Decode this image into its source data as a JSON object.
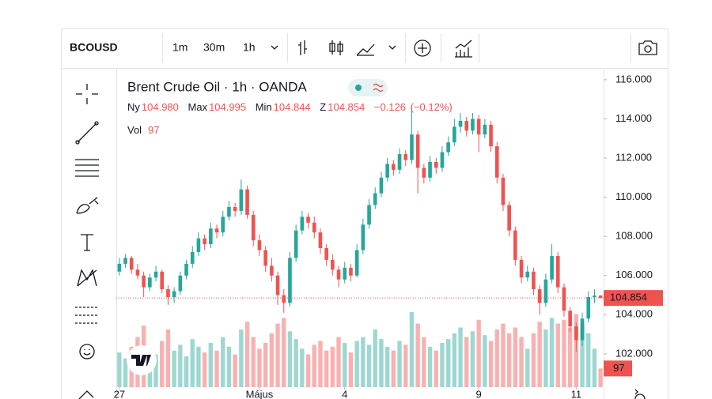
{
  "toolbar": {
    "symbol": "BCOUSD",
    "intervals": [
      "1m",
      "30m",
      "1h"
    ],
    "active_interval": 2
  },
  "chart_data": {
    "type": "candlestick",
    "title": "Brent Crude Oil · 1h · OANDA",
    "legend": {
      "open_label": "Ny",
      "open": "104.980",
      "high_label": "Max",
      "high": "104.995",
      "low_label": "Min",
      "low": "104.844",
      "close_label": "Z",
      "close": "104.854",
      "change": "−0.126",
      "change_pct": "(−0.12%)",
      "volume_label": "Vol"
    },
    "up_color": "#26a69a",
    "down_color": "#ef5350",
    "open": [
      106.2,
      106.6,
      106.9,
      106.3,
      106.0,
      105.4,
      105.9,
      106.2,
      105.3,
      104.9,
      105.2,
      106.0,
      106.6,
      107.2,
      107.9,
      107.6,
      108.4,
      108.2,
      109.0,
      109.5,
      109.3,
      110.4,
      109.1,
      107.8,
      107.3,
      106.5,
      106.0,
      105.0,
      104.6,
      106.9,
      108.3,
      109.0,
      108.7,
      108.2,
      107.4,
      106.8,
      106.3,
      105.8,
      106.4,
      106.0,
      107.3,
      108.6,
      109.6,
      110.2,
      111.0,
      111.7,
      111.4,
      112.2,
      111.9,
      113.2,
      111.5,
      111.0,
      111.8,
      111.5,
      112.3,
      112.8,
      113.6,
      113.9,
      113.4,
      114.0,
      113.2,
      113.7,
      112.6,
      111.0,
      109.6,
      108.3,
      106.8,
      105.9,
      106.2,
      105.3,
      104.6,
      105.8,
      107.0,
      105.4,
      104.2,
      103.4,
      102.7,
      103.8,
      104.9,
      104.98
    ],
    "high": [
      106.9,
      107.1,
      107.0,
      106.6,
      106.2,
      106.1,
      106.5,
      106.3,
      105.5,
      105.4,
      106.2,
      106.8,
      107.5,
      108.2,
      108.1,
      108.7,
      108.6,
      109.3,
      109.8,
      109.7,
      110.9,
      110.6,
      109.3,
      108.1,
      107.5,
      106.9,
      106.2,
      105.3,
      107.2,
      108.6,
      109.3,
      109.2,
      109.0,
      108.4,
      107.6,
      107.1,
      106.5,
      106.7,
      106.6,
      107.6,
      108.9,
      109.9,
      110.5,
      111.3,
      112.0,
      111.9,
      112.5,
      112.4,
      114.6,
      113.4,
      111.7,
      112.1,
      112.0,
      112.6,
      113.1,
      114.0,
      114.3,
      114.1,
      114.3,
      114.2,
      114.0,
      113.9,
      112.8,
      111.2,
      109.8,
      108.5,
      107.0,
      106.5,
      106.4,
      105.5,
      106.1,
      107.6,
      107.2,
      105.6,
      104.4,
      103.6,
      104.1,
      105.2,
      105.3,
      104.995
    ],
    "low": [
      106.0,
      106.4,
      106.1,
      105.8,
      104.9,
      105.2,
      105.7,
      105.1,
      104.5,
      104.6,
      105.0,
      105.8,
      106.4,
      107.0,
      107.3,
      107.4,
      107.9,
      108.0,
      108.8,
      109.0,
      109.1,
      108.9,
      107.5,
      107.0,
      106.2,
      105.7,
      104.5,
      104.1,
      104.4,
      106.7,
      108.1,
      108.4,
      107.9,
      107.1,
      106.5,
      106.0,
      105.4,
      105.6,
      105.7,
      105.9,
      107.1,
      108.4,
      109.4,
      110.0,
      110.8,
      111.1,
      111.2,
      111.6,
      111.7,
      110.2,
      110.7,
      110.8,
      111.2,
      111.3,
      112.1,
      112.6,
      113.3,
      113.1,
      113.2,
      112.3,
      113.0,
      112.3,
      110.7,
      109.3,
      108.0,
      106.5,
      105.6,
      105.7,
      105.0,
      104.0,
      104.4,
      105.6,
      105.1,
      103.9,
      103.1,
      102.1,
      102.4,
      103.6,
      104.6,
      104.844
    ],
    "close": [
      106.6,
      106.9,
      106.3,
      106.0,
      105.4,
      105.9,
      106.2,
      105.3,
      104.9,
      105.2,
      106.0,
      106.6,
      107.2,
      107.9,
      107.6,
      108.4,
      108.2,
      109.0,
      109.5,
      109.3,
      110.4,
      109.1,
      107.8,
      107.3,
      106.5,
      106.0,
      105.0,
      104.6,
      106.9,
      108.3,
      109.0,
      108.7,
      108.2,
      107.4,
      106.8,
      106.3,
      105.8,
      106.4,
      106.0,
      107.3,
      108.6,
      109.6,
      110.2,
      111.0,
      111.7,
      111.4,
      112.2,
      111.9,
      113.2,
      111.5,
      111.0,
      111.8,
      111.5,
      112.3,
      112.8,
      113.6,
      113.9,
      113.4,
      114.0,
      113.2,
      113.7,
      112.6,
      111.0,
      109.6,
      108.3,
      106.8,
      105.9,
      106.2,
      105.3,
      104.6,
      105.8,
      107.0,
      105.4,
      104.2,
      103.4,
      102.7,
      103.8,
      104.9,
      104.98,
      104.854
    ],
    "volume": [
      180,
      150,
      210,
      260,
      320,
      200,
      170,
      240,
      300,
      190,
      220,
      160,
      250,
      210,
      180,
      230,
      190,
      260,
      210,
      170,
      300,
      340,
      260,
      200,
      230,
      280,
      330,
      360,
      290,
      250,
      200,
      170,
      220,
      240,
      190,
      210,
      260,
      230,
      180,
      240,
      260,
      220,
      300,
      250,
      210,
      190,
      240,
      220,
      390,
      330,
      260,
      210,
      190,
      230,
      250,
      280,
      310,
      260,
      290,
      350,
      270,
      240,
      300,
      330,
      280,
      310,
      260,
      200,
      280,
      340,
      300,
      360,
      330,
      350,
      310,
      380,
      330,
      280,
      200,
      97
    ],
    "ylim": [
      100.3,
      116.52
    ],
    "yticks": [
      {
        "value": 102,
        "label": "102.000"
      },
      {
        "value": 104,
        "label": "104.000"
      },
      {
        "value": 106,
        "label": "106.000"
      },
      {
        "value": 108,
        "label": "108.000"
      },
      {
        "value": 110,
        "label": "110.000"
      },
      {
        "value": 112,
        "label": "112.000"
      },
      {
        "value": 114,
        "label": "114.000"
      },
      {
        "value": 116,
        "label": "116.000"
      }
    ],
    "xticks": [
      {
        "value": 0,
        "label": "27"
      },
      {
        "value": 23,
        "label": "Május"
      },
      {
        "value": 37,
        "label": "4"
      },
      {
        "value": 59,
        "label": "9"
      },
      {
        "value": 75,
        "label": "11"
      }
    ],
    "last_price": 104.854,
    "last_price_color": "#ef5350"
  }
}
